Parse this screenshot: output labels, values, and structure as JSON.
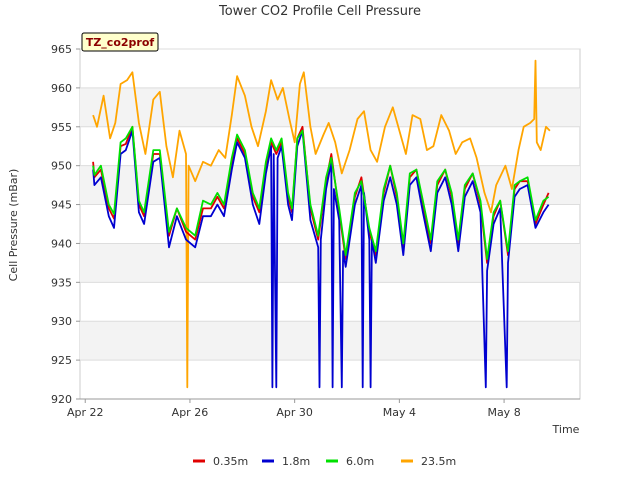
{
  "chart_data": {
    "type": "line",
    "title": "Tower CO2 Profile Cell Pressure",
    "tag": "TZ_co2prof",
    "xlabel": "Time",
    "ylabel": "Cell Pressure (mBar)",
    "xlim_days": [
      -0.2,
      18.9
    ],
    "ylim": [
      920,
      965
    ],
    "yticks": [
      920,
      925,
      930,
      935,
      940,
      945,
      950,
      955,
      960,
      965
    ],
    "xticks": [
      {
        "day": 0,
        "label": "Apr 22"
      },
      {
        "day": 4,
        "label": "Apr 26"
      },
      {
        "day": 8,
        "label": "Apr 30"
      },
      {
        "day": 12,
        "label": "May 4"
      },
      {
        "day": 16,
        "label": "May 8"
      }
    ],
    "grid": true,
    "legend_position": "bottom",
    "series": [
      {
        "name": "0.35m",
        "color": "#e00000",
        "points": [
          [
            0.3,
            950.5
          ],
          [
            0.35,
            948.5
          ],
          [
            0.6,
            949.5
          ],
          [
            0.9,
            944.5
          ],
          [
            1.1,
            943.2
          ],
          [
            1.35,
            952.5
          ],
          [
            1.55,
            952.8
          ],
          [
            1.8,
            955.0
          ],
          [
            2.05,
            945.0
          ],
          [
            2.25,
            943.5
          ],
          [
            2.6,
            951.5
          ],
          [
            2.85,
            951.5
          ],
          [
            3.2,
            941.0
          ],
          [
            3.5,
            944.5
          ],
          [
            3.85,
            941.5
          ],
          [
            4.2,
            940.5
          ],
          [
            4.5,
            944.5
          ],
          [
            4.8,
            944.5
          ],
          [
            5.05,
            946.0
          ],
          [
            5.3,
            944.5
          ],
          [
            5.6,
            950.5
          ],
          [
            5.8,
            953.5
          ],
          [
            6.1,
            951.5
          ],
          [
            6.4,
            946.0
          ],
          [
            6.65,
            944.0
          ],
          [
            6.9,
            950.0
          ],
          [
            7.1,
            953.0
          ],
          [
            7.3,
            951.5
          ],
          [
            7.5,
            953.0
          ],
          [
            7.75,
            946.0
          ],
          [
            7.9,
            944.0
          ],
          [
            8.1,
            953.5
          ],
          [
            8.3,
            955.0
          ],
          [
            8.6,
            944.5
          ],
          [
            8.9,
            940.5
          ],
          [
            9.2,
            948.0
          ],
          [
            9.4,
            951.5
          ],
          [
            9.7,
            944.0
          ],
          [
            9.95,
            938.0
          ],
          [
            10.3,
            946.0
          ],
          [
            10.55,
            948.5
          ],
          [
            10.85,
            941.5
          ],
          [
            11.1,
            938.5
          ],
          [
            11.4,
            946.5
          ],
          [
            11.65,
            950.0
          ],
          [
            11.9,
            946.0
          ],
          [
            12.15,
            939.5
          ],
          [
            12.4,
            948.5
          ],
          [
            12.65,
            949.5
          ],
          [
            12.9,
            945.0
          ],
          [
            13.2,
            940.0
          ],
          [
            13.45,
            947.5
          ],
          [
            13.75,
            949.5
          ],
          [
            14.0,
            946.0
          ],
          [
            14.25,
            940.0
          ],
          [
            14.5,
            947.0
          ],
          [
            14.8,
            949.0
          ],
          [
            15.1,
            945.0
          ],
          [
            15.35,
            937.5
          ],
          [
            15.6,
            943.5
          ],
          [
            15.85,
            945.5
          ],
          [
            16.15,
            938.5
          ],
          [
            16.4,
            947.0
          ],
          [
            16.6,
            948.0
          ],
          [
            16.9,
            948.0
          ],
          [
            17.2,
            942.5
          ],
          [
            17.5,
            945.0
          ],
          [
            17.7,
            946.5
          ]
        ]
      },
      {
        "name": "1.8m",
        "color": "#0000d0",
        "points": [
          [
            0.3,
            949.5
          ],
          [
            0.35,
            947.5
          ],
          [
            0.6,
            948.5
          ],
          [
            0.9,
            943.5
          ],
          [
            1.1,
            942.0
          ],
          [
            1.35,
            951.5
          ],
          [
            1.55,
            952.0
          ],
          [
            1.8,
            954.5
          ],
          [
            2.05,
            944.0
          ],
          [
            2.25,
            942.5
          ],
          [
            2.6,
            950.5
          ],
          [
            2.85,
            951.0
          ],
          [
            3.2,
            939.5
          ],
          [
            3.5,
            943.5
          ],
          [
            3.85,
            940.5
          ],
          [
            4.2,
            939.5
          ],
          [
            4.5,
            943.5
          ],
          [
            4.8,
            943.5
          ],
          [
            5.05,
            945.0
          ],
          [
            5.3,
            943.5
          ],
          [
            5.6,
            949.5
          ],
          [
            5.8,
            953.0
          ],
          [
            6.1,
            951.0
          ],
          [
            6.4,
            945.0
          ],
          [
            6.65,
            942.5
          ],
          [
            6.9,
            949.0
          ],
          [
            7.1,
            952.5
          ],
          [
            7.15,
            921.5
          ],
          [
            7.2,
            951.5
          ],
          [
            7.3,
            921.5
          ],
          [
            7.35,
            951.0
          ],
          [
            7.5,
            952.5
          ],
          [
            7.75,
            945.0
          ],
          [
            7.9,
            943.0
          ],
          [
            8.1,
            952.5
          ],
          [
            8.3,
            954.5
          ],
          [
            8.6,
            943.0
          ],
          [
            8.9,
            939.5
          ],
          [
            8.95,
            921.5
          ],
          [
            9.0,
            940.5
          ],
          [
            9.2,
            947.0
          ],
          [
            9.4,
            950.5
          ],
          [
            9.45,
            921.5
          ],
          [
            9.5,
            947.0
          ],
          [
            9.7,
            943.0
          ],
          [
            9.8,
            921.5
          ],
          [
            9.85,
            939.0
          ],
          [
            9.95,
            937.0
          ],
          [
            10.3,
            945.0
          ],
          [
            10.55,
            947.5
          ],
          [
            10.6,
            921.5
          ],
          [
            10.65,
            946.5
          ],
          [
            10.85,
            940.5
          ],
          [
            10.9,
            921.5
          ],
          [
            10.95,
            940.5
          ],
          [
            11.1,
            937.5
          ],
          [
            11.4,
            945.5
          ],
          [
            11.65,
            948.5
          ],
          [
            11.9,
            945.0
          ],
          [
            12.15,
            938.5
          ],
          [
            12.4,
            947.5
          ],
          [
            12.65,
            948.5
          ],
          [
            12.9,
            944.0
          ],
          [
            13.2,
            939.0
          ],
          [
            13.45,
            946.5
          ],
          [
            13.75,
            948.5
          ],
          [
            14.0,
            945.0
          ],
          [
            14.25,
            939.0
          ],
          [
            14.5,
            946.0
          ],
          [
            14.8,
            948.0
          ],
          [
            15.1,
            944.0
          ],
          [
            15.3,
            921.5
          ],
          [
            15.35,
            936.5
          ],
          [
            15.6,
            942.5
          ],
          [
            15.85,
            944.5
          ],
          [
            16.1,
            921.5
          ],
          [
            16.15,
            937.5
          ],
          [
            16.4,
            946.0
          ],
          [
            16.6,
            947.0
          ],
          [
            16.9,
            947.5
          ],
          [
            17.2,
            942.0
          ],
          [
            17.5,
            944.0
          ],
          [
            17.7,
            945.0
          ]
        ]
      },
      {
        "name": "6.0m",
        "color": "#00e000",
        "points": [
          [
            0.3,
            950.0
          ],
          [
            0.35,
            948.8
          ],
          [
            0.6,
            950.0
          ],
          [
            0.9,
            945.0
          ],
          [
            1.1,
            943.8
          ],
          [
            1.35,
            953.0
          ],
          [
            1.55,
            953.5
          ],
          [
            1.8,
            955.0
          ],
          [
            2.05,
            945.5
          ],
          [
            2.25,
            944.0
          ],
          [
            2.6,
            952.0
          ],
          [
            2.85,
            952.0
          ],
          [
            3.2,
            941.5
          ],
          [
            3.5,
            944.5
          ],
          [
            3.85,
            942.0
          ],
          [
            4.2,
            941.0
          ],
          [
            4.5,
            945.5
          ],
          [
            4.8,
            945.0
          ],
          [
            5.05,
            946.5
          ],
          [
            5.3,
            945.0
          ],
          [
            5.6,
            951.0
          ],
          [
            5.8,
            954.0
          ],
          [
            6.1,
            952.0
          ],
          [
            6.4,
            946.5
          ],
          [
            6.65,
            944.5
          ],
          [
            6.9,
            950.5
          ],
          [
            7.1,
            953.5
          ],
          [
            7.3,
            952.0
          ],
          [
            7.5,
            953.5
          ],
          [
            7.75,
            946.5
          ],
          [
            7.9,
            944.5
          ],
          [
            8.1,
            953.5
          ],
          [
            8.3,
            954.5
          ],
          [
            8.6,
            945.0
          ],
          [
            8.9,
            941.0
          ],
          [
            9.2,
            948.5
          ],
          [
            9.4,
            951.0
          ],
          [
            9.7,
            944.5
          ],
          [
            9.95,
            938.5
          ],
          [
            10.3,
            946.5
          ],
          [
            10.55,
            948.0
          ],
          [
            10.85,
            942.0
          ],
          [
            11.1,
            939.0
          ],
          [
            11.4,
            947.0
          ],
          [
            11.65,
            950.0
          ],
          [
            11.9,
            946.5
          ],
          [
            12.15,
            940.0
          ],
          [
            12.4,
            949.0
          ],
          [
            12.65,
            949.5
          ],
          [
            12.9,
            945.5
          ],
          [
            13.2,
            940.5
          ],
          [
            13.45,
            948.0
          ],
          [
            13.75,
            949.5
          ],
          [
            14.0,
            946.5
          ],
          [
            14.25,
            940.5
          ],
          [
            14.5,
            947.5
          ],
          [
            14.8,
            949.0
          ],
          [
            15.1,
            945.5
          ],
          [
            15.35,
            938.0
          ],
          [
            15.6,
            944.0
          ],
          [
            15.85,
            945.5
          ],
          [
            16.15,
            939.0
          ],
          [
            16.4,
            947.5
          ],
          [
            16.6,
            948.0
          ],
          [
            16.9,
            948.5
          ],
          [
            17.2,
            943.0
          ],
          [
            17.5,
            945.5
          ],
          [
            17.7,
            946.0
          ]
        ]
      },
      {
        "name": "23.5m",
        "color": "#ffa500",
        "points": [
          [
            0.3,
            956.5
          ],
          [
            0.45,
            955.0
          ],
          [
            0.7,
            959.0
          ],
          [
            0.95,
            953.5
          ],
          [
            1.15,
            955.5
          ],
          [
            1.35,
            960.5
          ],
          [
            1.6,
            961.0
          ],
          [
            1.8,
            962.0
          ],
          [
            2.05,
            955.5
          ],
          [
            2.3,
            951.5
          ],
          [
            2.6,
            958.5
          ],
          [
            2.85,
            959.5
          ],
          [
            3.1,
            952.5
          ],
          [
            3.35,
            948.5
          ],
          [
            3.6,
            954.5
          ],
          [
            3.85,
            951.5
          ],
          [
            3.9,
            921.5
          ],
          [
            3.95,
            950.0
          ],
          [
            4.2,
            948.0
          ],
          [
            4.5,
            950.5
          ],
          [
            4.8,
            950.0
          ],
          [
            5.1,
            952.0
          ],
          [
            5.35,
            951.0
          ],
          [
            5.6,
            956.5
          ],
          [
            5.8,
            961.5
          ],
          [
            6.1,
            959.0
          ],
          [
            6.35,
            955.0
          ],
          [
            6.6,
            952.5
          ],
          [
            6.9,
            957.0
          ],
          [
            7.1,
            961.0
          ],
          [
            7.35,
            958.5
          ],
          [
            7.55,
            960.0
          ],
          [
            7.8,
            956.0
          ],
          [
            8.0,
            953.0
          ],
          [
            8.2,
            960.5
          ],
          [
            8.35,
            962.0
          ],
          [
            8.6,
            955.0
          ],
          [
            8.8,
            951.5
          ],
          [
            9.1,
            954.0
          ],
          [
            9.3,
            955.5
          ],
          [
            9.55,
            953.0
          ],
          [
            9.8,
            949.0
          ],
          [
            10.1,
            952.0
          ],
          [
            10.4,
            956.0
          ],
          [
            10.65,
            957.0
          ],
          [
            10.9,
            952.0
          ],
          [
            11.15,
            950.5
          ],
          [
            11.45,
            955.0
          ],
          [
            11.75,
            957.5
          ],
          [
            12.0,
            954.5
          ],
          [
            12.25,
            951.5
          ],
          [
            12.5,
            956.5
          ],
          [
            12.8,
            956.0
          ],
          [
            13.05,
            952.0
          ],
          [
            13.3,
            952.5
          ],
          [
            13.6,
            956.5
          ],
          [
            13.9,
            954.5
          ],
          [
            14.15,
            951.5
          ],
          [
            14.4,
            953.0
          ],
          [
            14.7,
            953.5
          ],
          [
            14.95,
            951.0
          ],
          [
            15.25,
            946.5
          ],
          [
            15.5,
            944.0
          ],
          [
            15.7,
            947.5
          ],
          [
            16.05,
            950.0
          ],
          [
            16.3,
            947.0
          ],
          [
            16.55,
            952.0
          ],
          [
            16.75,
            955.0
          ],
          [
            17.0,
            955.5
          ],
          [
            17.15,
            956.0
          ],
          [
            17.2,
            963.5
          ],
          [
            17.25,
            953.0
          ],
          [
            17.4,
            952.0
          ],
          [
            17.6,
            955.0
          ],
          [
            17.75,
            954.5
          ]
        ]
      }
    ]
  }
}
